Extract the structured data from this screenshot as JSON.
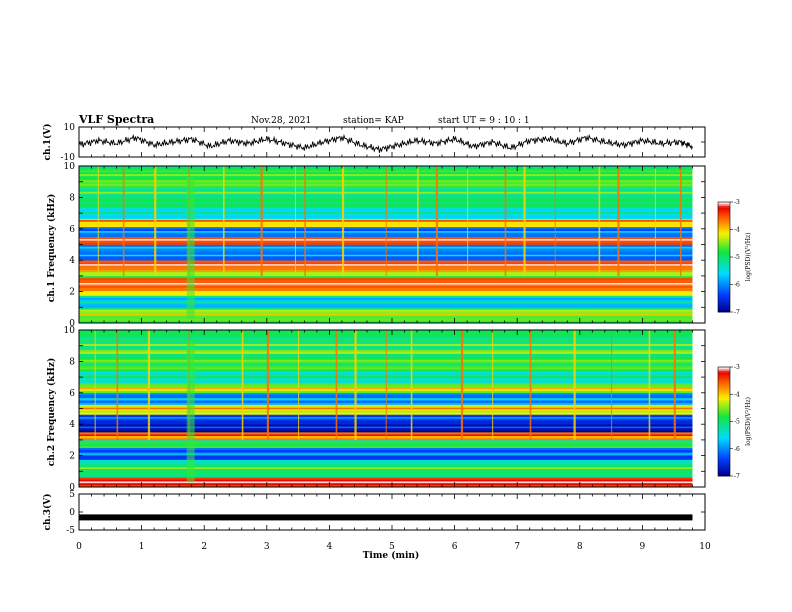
{
  "header": {
    "title": "VLF Spectra",
    "date": "Nov.28, 2021",
    "station": "station= KAP",
    "start": "start UT = 9 : 10 : 1"
  },
  "chart_data": [
    {
      "type": "line",
      "panel": "waveform ch.1",
      "ylabel": "ch.1(V)",
      "ylim": [
        -10,
        10
      ],
      "yticks": [
        "10",
        "-10"
      ],
      "xlim": [
        0,
        10
      ],
      "x": [
        0.0,
        0.3,
        0.6,
        0.9,
        1.2,
        1.5,
        1.8,
        2.1,
        2.4,
        2.7,
        3.0,
        3.3,
        3.6,
        3.9,
        4.2,
        4.5,
        4.8,
        5.1,
        5.4,
        5.7,
        6.0,
        6.3,
        6.6,
        6.9,
        7.2,
        7.5,
        7.8,
        8.1,
        8.4,
        8.7,
        9.0,
        9.3,
        9.6,
        9.8
      ],
      "values": [
        -2,
        1,
        -1,
        3,
        -2,
        0,
        2,
        -3,
        1,
        -1,
        2,
        -1,
        -4,
        0,
        3,
        -2,
        -5,
        -2,
        1,
        -1,
        2,
        -3,
        0,
        -4,
        1,
        2,
        -1,
        3,
        0,
        -2,
        1,
        -1,
        0,
        -3
      ]
    },
    {
      "type": "heatmap",
      "panel": "spectrogram ch.1",
      "ylabel": "ch.1 Frequency (kHz)",
      "ylim": [
        0,
        10
      ],
      "yticks": [
        "0",
        "2",
        "4",
        "6",
        "8",
        "10"
      ],
      "xlim": [
        0,
        9.8
      ],
      "colorbar": {
        "label": "log(PSD)(V²/Hz)",
        "range": [
          -7,
          -3
        ],
        "ticks": [
          "-3",
          "-4",
          "-5",
          "-6",
          "-7"
        ]
      },
      "bands_khz": [
        {
          "f": 0.5,
          "level": -4.5
        },
        {
          "f": 1.3,
          "level": -5.8
        },
        {
          "f": 2.1,
          "level": -4.2
        },
        {
          "f": 2.5,
          "level": -3.6
        },
        {
          "f": 3.3,
          "level": -4.4
        },
        {
          "f": 3.7,
          "level": -3.6
        },
        {
          "f": 4.3,
          "level": -6.2
        },
        {
          "f": 4.8,
          "level": -6.0
        },
        {
          "f": 5.3,
          "level": -3.6
        },
        {
          "f": 5.8,
          "level": -6.2
        },
        {
          "f": 6.5,
          "level": -4.0
        },
        {
          "f": 7.0,
          "level": -5.6
        }
      ],
      "spikes_min": [
        0.3,
        0.7,
        1.2,
        1.75,
        2.3,
        2.9,
        3.45,
        3.6,
        4.2,
        4.9,
        5.4,
        5.7,
        6.2,
        6.8,
        7.1,
        7.6,
        8.3,
        8.6,
        9.2,
        9.6
      ]
    },
    {
      "type": "heatmap",
      "panel": "spectrogram ch.2",
      "ylabel": "ch.2 Frequency (kHz)",
      "ylim": [
        0,
        10
      ],
      "yticks": [
        "0",
        "2",
        "4",
        "6",
        "8",
        "10"
      ],
      "xlim": [
        0,
        9.8
      ],
      "colorbar": {
        "label": "log(PSD)(V²/Hz)",
        "range": [
          -7,
          -3
        ],
        "ticks": [
          "-3",
          "-4",
          "-5",
          "-6",
          "-7"
        ]
      },
      "bands_khz": [
        {
          "f": 0.3,
          "level": -3.4
        },
        {
          "f": 1.2,
          "level": -5.0
        },
        {
          "f": 2.1,
          "level": -6.3
        },
        {
          "f": 3.3,
          "level": -3.8
        },
        {
          "f": 3.8,
          "level": -6.8
        },
        {
          "f": 4.4,
          "level": -6.5
        },
        {
          "f": 5.0,
          "level": -4.2
        },
        {
          "f": 5.6,
          "level": -6.0
        },
        {
          "f": 6.3,
          "level": -4.4
        },
        {
          "f": 7.0,
          "level": -5.4
        }
      ],
      "spikes_min": [
        0.25,
        0.6,
        1.1,
        1.75,
        2.6,
        3.0,
        3.5,
        4.1,
        4.4,
        4.9,
        5.3,
        6.1,
        6.6,
        7.2,
        7.9,
        8.5,
        9.1,
        9.5
      ]
    },
    {
      "type": "line",
      "panel": "waveform ch.3",
      "ylabel": "ch.3(V)",
      "ylim": [
        -5,
        5
      ],
      "yticks": [
        "5",
        "0",
        "-5"
      ],
      "xlim": [
        0,
        10
      ],
      "x": [
        0,
        9.8
      ],
      "values": [
        -1.5,
        -1.5
      ],
      "xlabel": "Time (min)",
      "xticks": [
        "0",
        "1",
        "2",
        "3",
        "4",
        "5",
        "6",
        "7",
        "8",
        "9",
        "10"
      ]
    }
  ]
}
